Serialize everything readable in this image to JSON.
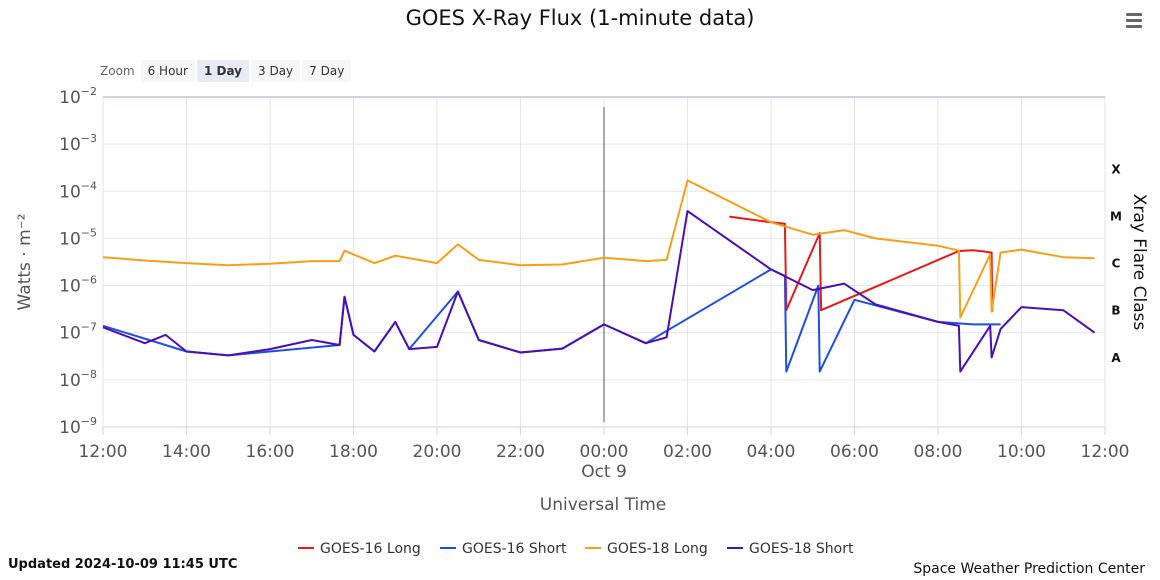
{
  "header": {
    "title": "GOES X-Ray Flux (1-minute data)",
    "menu_icon": "hamburger-menu-icon"
  },
  "zoom": {
    "label": "Zoom",
    "options": [
      "6 Hour",
      "1 Day",
      "3 Day",
      "7 Day"
    ],
    "selected": "1 Day"
  },
  "footer": {
    "updated": "Updated 2024-10-09 11:45 UTC",
    "credit": "Space Weather Prediction Center"
  },
  "chart_data": {
    "type": "line",
    "title": "GOES X-Ray Flux (1-minute data)",
    "xlabel": "Universal Time",
    "ylabel": "Watts · m⁻²",
    "ylabel_right": "Xray Flare Class",
    "y_scale": "log",
    "ylim": [
      1e-09,
      0.01
    ],
    "xlim": [
      "2024-10-08 12:00",
      "2024-10-09 12:00"
    ],
    "x_ticks": [
      "12:00",
      "14:00",
      "16:00",
      "18:00",
      "20:00",
      "22:00",
      "00:00",
      "02:00",
      "04:00",
      "06:00",
      "08:00",
      "10:00",
      "12:00"
    ],
    "x_tick_sublabels": {
      "00:00": "Oct 9"
    },
    "y_ticks": [
      {
        "value": 1e-09,
        "base": "10",
        "exp": "−9"
      },
      {
        "value": 1e-08,
        "base": "10",
        "exp": "−8"
      },
      {
        "value": 1e-07,
        "base": "10",
        "exp": "−7"
      },
      {
        "value": 1e-06,
        "base": "10",
        "exp": "−6"
      },
      {
        "value": 1e-05,
        "base": "10",
        "exp": "−5"
      },
      {
        "value": 0.0001,
        "base": "10",
        "exp": "−4"
      },
      {
        "value": 0.001,
        "base": "10",
        "exp": "−3"
      },
      {
        "value": 0.01,
        "base": "10",
        "exp": "−2"
      }
    ],
    "flare_classes": [
      {
        "label": "A",
        "value": 1e-08
      },
      {
        "label": "B",
        "value": 1e-07
      },
      {
        "label": "C",
        "value": 1e-06
      },
      {
        "label": "M",
        "value": 1e-05
      },
      {
        "label": "X",
        "value": 0.0001
      }
    ],
    "vertical_marker": "2024-10-09 00:00",
    "grid": true,
    "legend_position": "bottom-center",
    "series": [
      {
        "name": "GOES-16 Long",
        "color": "#e41a1c",
        "points": [
          [
            "2024-10-09 03:00",
            2.9e-05
          ],
          [
            "2024-10-09 04:00",
            2.2e-05
          ],
          [
            "2024-10-09 04:20",
            2.05e-05
          ],
          [
            "2024-10-09 04:22",
            3e-07
          ],
          [
            "2024-10-09 05:10",
            1.3e-05
          ],
          [
            "2024-10-09 05:12",
            3e-07
          ],
          [
            "2024-10-09 08:30",
            5.4e-06
          ],
          [
            "2024-10-09 08:50",
            5.6e-06
          ],
          [
            "2024-10-09 09:05",
            5.3e-06
          ],
          [
            "2024-10-09 09:17",
            5e-06
          ],
          [
            "2024-10-09 09:18",
            2.8e-07
          ]
        ]
      },
      {
        "name": "GOES-16 Short",
        "color": "#1f4fe0",
        "points": [
          [
            "2024-10-08 12:00",
            1.4e-07
          ],
          [
            "2024-10-08 14:00",
            4e-08
          ],
          [
            "2024-10-08 15:00",
            3.3e-08
          ],
          [
            "2024-10-08 17:40",
            5.5e-08
          ],
          [
            "2024-10-08 17:47",
            5.8e-07
          ],
          [
            "2024-10-08 18:00",
            9e-08
          ],
          [
            "2024-10-08 18:30",
            4e-08
          ],
          [
            "2024-10-08 19:00",
            1.7e-07
          ],
          [
            "2024-10-08 19:20",
            4.5e-08
          ],
          [
            "2024-10-08 20:30",
            7.5e-07
          ],
          [
            "2024-10-08 21:00",
            7e-08
          ],
          [
            "2024-10-08 22:00",
            3.8e-08
          ],
          [
            "2024-10-08 23:00",
            4.6e-08
          ],
          [
            "2024-10-09 00:00",
            1.5e-07
          ],
          [
            "2024-10-09 01:00",
            6e-08
          ],
          [
            "2024-10-09 04:00",
            2.2e-06
          ],
          [
            "2024-10-09 04:20",
            1.6e-06
          ],
          [
            "2024-10-09 04:22",
            1.5e-08
          ],
          [
            "2024-10-09 05:08",
            1e-06
          ],
          [
            "2024-10-09 05:10",
            1.5e-08
          ],
          [
            "2024-10-09 06:00",
            5e-07
          ],
          [
            "2024-10-09 08:00",
            1.7e-07
          ],
          [
            "2024-10-09 08:50",
            1.5e-07
          ],
          [
            "2024-10-09 09:30",
            1.5e-07
          ]
        ]
      },
      {
        "name": "GOES-18 Long",
        "color": "#f5a01a",
        "points": [
          [
            "2024-10-08 12:00",
            4e-06
          ],
          [
            "2024-10-08 13:00",
            3.4e-06
          ],
          [
            "2024-10-08 14:00",
            3e-06
          ],
          [
            "2024-10-08 15:00",
            2.7e-06
          ],
          [
            "2024-10-08 16:00",
            2.9e-06
          ],
          [
            "2024-10-08 17:00",
            3.3e-06
          ],
          [
            "2024-10-08 17:40",
            3.3e-06
          ],
          [
            "2024-10-08 17:47",
            5.5e-06
          ],
          [
            "2024-10-08 18:30",
            3e-06
          ],
          [
            "2024-10-08 19:00",
            4.3e-06
          ],
          [
            "2024-10-08 20:00",
            3e-06
          ],
          [
            "2024-10-08 20:30",
            7.5e-06
          ],
          [
            "2024-10-08 21:00",
            3.5e-06
          ],
          [
            "2024-10-08 22:00",
            2.7e-06
          ],
          [
            "2024-10-08 23:00",
            2.8e-06
          ],
          [
            "2024-10-09 00:00",
            3.9e-06
          ],
          [
            "2024-10-09 01:00",
            3.3e-06
          ],
          [
            "2024-10-09 01:30",
            3.5e-06
          ],
          [
            "2024-10-09 02:00",
            0.00017
          ],
          [
            "2024-10-09 04:00",
            2.2e-05
          ],
          [
            "2024-10-09 05:00",
            1.2e-05
          ],
          [
            "2024-10-09 05:45",
            1.5e-05
          ],
          [
            "2024-10-09 06:30",
            1e-05
          ],
          [
            "2024-10-09 08:00",
            7e-06
          ],
          [
            "2024-10-09 08:30",
            5.5e-06
          ],
          [
            "2024-10-09 08:32",
            2.1e-07
          ],
          [
            "2024-10-09 09:15",
            4.6e-06
          ],
          [
            "2024-10-09 09:17",
            2.8e-07
          ],
          [
            "2024-10-09 09:30",
            5e-06
          ],
          [
            "2024-10-09 10:00",
            5.8e-06
          ],
          [
            "2024-10-09 11:00",
            4e-06
          ],
          [
            "2024-10-09 11:45",
            3.8e-06
          ]
        ]
      },
      {
        "name": "GOES-18 Short",
        "color": "#4b0fb4",
        "points": [
          [
            "2024-10-08 12:00",
            1.3e-07
          ],
          [
            "2024-10-08 13:00",
            6e-08
          ],
          [
            "2024-10-08 13:30",
            9e-08
          ],
          [
            "2024-10-08 14:00",
            4e-08
          ],
          [
            "2024-10-08 15:00",
            3.3e-08
          ],
          [
            "2024-10-08 16:00",
            4.5e-08
          ],
          [
            "2024-10-08 17:00",
            7e-08
          ],
          [
            "2024-10-08 17:40",
            5.5e-08
          ],
          [
            "2024-10-08 17:47",
            5.8e-07
          ],
          [
            "2024-10-08 18:00",
            9e-08
          ],
          [
            "2024-10-08 18:30",
            4e-08
          ],
          [
            "2024-10-08 19:00",
            1.7e-07
          ],
          [
            "2024-10-08 19:20",
            4.5e-08
          ],
          [
            "2024-10-08 20:00",
            5e-08
          ],
          [
            "2024-10-08 20:30",
            7.5e-07
          ],
          [
            "2024-10-08 21:00",
            7e-08
          ],
          [
            "2024-10-08 22:00",
            3.8e-08
          ],
          [
            "2024-10-08 23:00",
            4.6e-08
          ],
          [
            "2024-10-09 00:00",
            1.5e-07
          ],
          [
            "2024-10-09 01:00",
            6e-08
          ],
          [
            "2024-10-09 01:30",
            8e-08
          ],
          [
            "2024-10-09 02:00",
            3.8e-05
          ],
          [
            "2024-10-09 04:00",
            2.2e-06
          ],
          [
            "2024-10-09 05:00",
            8e-07
          ],
          [
            "2024-10-09 05:45",
            1.1e-06
          ],
          [
            "2024-10-09 06:30",
            4e-07
          ],
          [
            "2024-10-09 08:00",
            1.7e-07
          ],
          [
            "2024-10-09 08:30",
            1.4e-07
          ],
          [
            "2024-10-09 08:32",
            1.5e-08
          ],
          [
            "2024-10-09 09:15",
            1.4e-07
          ],
          [
            "2024-10-09 09:17",
            3e-08
          ],
          [
            "2024-10-09 09:30",
            1.2e-07
          ],
          [
            "2024-10-09 10:00",
            3.5e-07
          ],
          [
            "2024-10-09 11:00",
            3e-07
          ],
          [
            "2024-10-09 11:45",
            1e-07
          ]
        ]
      }
    ]
  }
}
